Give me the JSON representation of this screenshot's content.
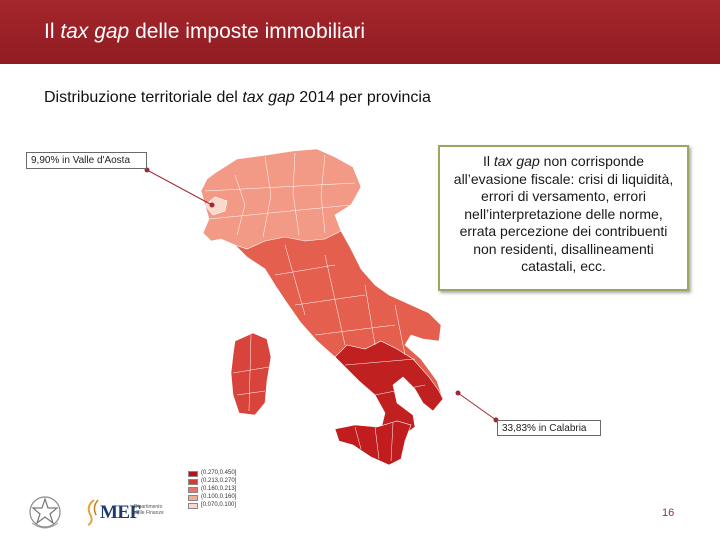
{
  "header": {
    "title_pre": "Il ",
    "title_em": "tax gap",
    "title_post": " delle imposte immobiliari",
    "background": "#9a2127"
  },
  "subtitle": {
    "pre": "Distribuzione territoriale del ",
    "em": "tax gap",
    "post": " 2014 per provincia"
  },
  "callouts": {
    "aosta": "9,90% in Valle d'Aosta",
    "calabria": "33,83% in Calabria"
  },
  "infobox": {
    "pre": "Il ",
    "em": "tax gap",
    "post": " non corrisponde all’evasione fiscale: crisi di liquidità, errori di versamento, errori nell’interpretazione delle norme, errata percezione dei contribuenti non residenti, disallineamenti catastali, ecc."
  },
  "legend": [
    {
      "label": "(0.270,0.450]",
      "color": "#b5121b"
    },
    {
      "label": "(0.213,0.270]",
      "color": "#d63b36"
    },
    {
      "label": "(0.160,0.213]",
      "color": "#ea7461"
    },
    {
      "label": "(0.100,0.160]",
      "color": "#f4aa95"
    },
    {
      "label": "[0.070,0.100]",
      "color": "#fbd8cc"
    }
  ],
  "footer": {
    "logo_text": "MEF",
    "dept_line1": "Dipartimento",
    "dept_line2": "delle Finanze",
    "page_number": "16"
  }
}
